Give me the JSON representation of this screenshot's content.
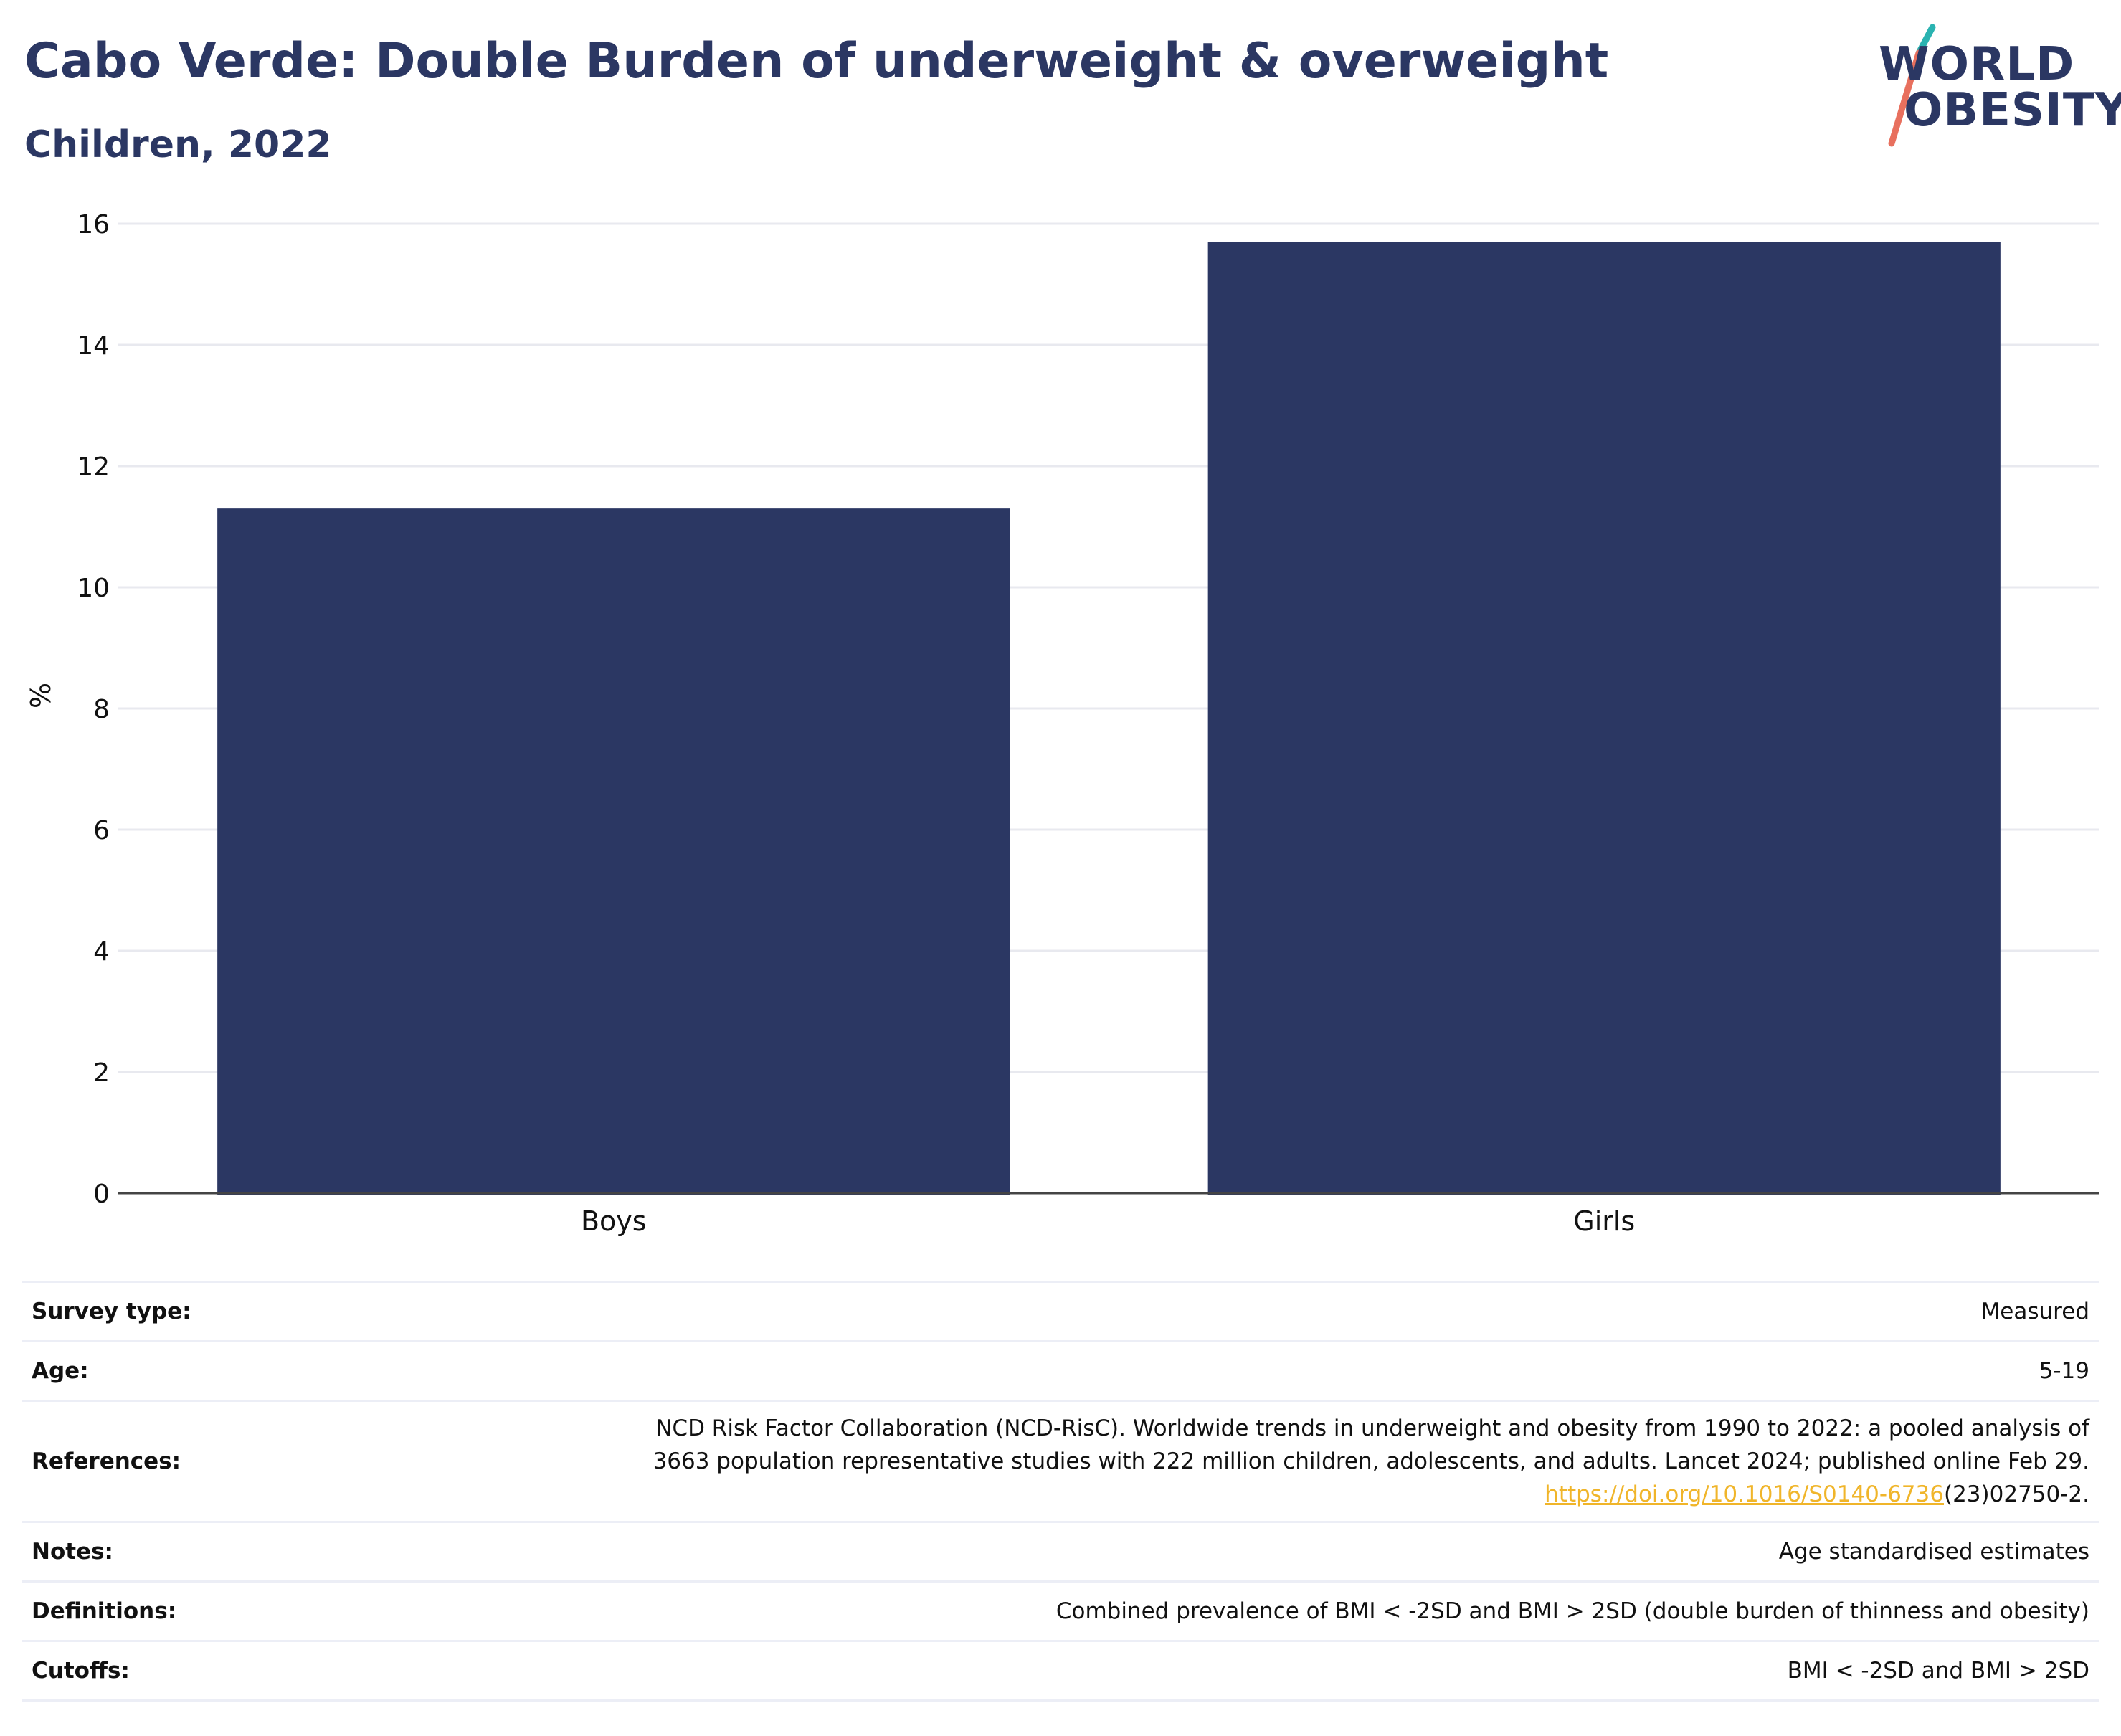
{
  "header": {
    "title": "Cabo Verde: Double Burden of underweight & overweight",
    "subtitle": "Children, 2022"
  },
  "logo": {
    "line1": "WORLD",
    "line2": "OBESITY",
    "colors": {
      "text": "#2b3763",
      "slash_top": "#2ab3b1",
      "slash_bottom": "#e8705e"
    }
  },
  "chart_data": {
    "type": "bar",
    "categories": [
      "Boys",
      "Girls"
    ],
    "values": [
      11.3,
      15.7
    ],
    "ylabel": "%",
    "ylim": [
      0,
      16
    ],
    "yticks": [
      "0",
      "2",
      "4",
      "6",
      "8",
      "10",
      "12",
      "14",
      "16"
    ],
    "grid": true,
    "bar_color": "#2b3763"
  },
  "info": {
    "survey_type": {
      "label": "Survey type:",
      "value": "Measured"
    },
    "age": {
      "label": "Age:",
      "value": "5-19"
    },
    "references": {
      "label": "References:",
      "line1": "NCD Risk Factor Collaboration (NCD-RisC). Worldwide trends in underweight and obesity from 1990 to 2022: a pooled analysis of",
      "line2": "3663 population representative studies with 222 million children, adolescents, and adults. Lancet 2024; published online Feb 29.",
      "link": "https://doi.org/10.1016/S0140-6736",
      "link_suffix": "(23)02750-2."
    },
    "notes": {
      "label": "Notes:",
      "value": "Age standardised estimates"
    },
    "definitions": {
      "label": "Definitions:",
      "value": "Combined prevalence of BMI < -2SD and BMI > 2SD (double burden of thinness and obesity)"
    },
    "cutoffs": {
      "label": "Cutoffs:",
      "value": "BMI < -2SD and BMI > 2SD"
    }
  }
}
